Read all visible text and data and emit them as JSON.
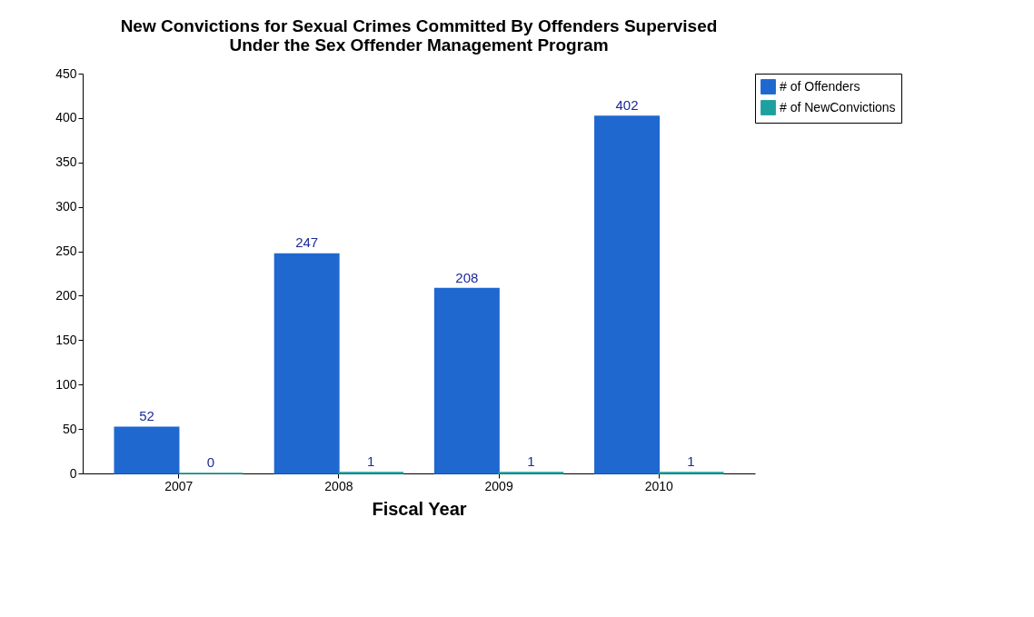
{
  "chart_data": {
    "type": "bar",
    "title": "New Convictions for Sexual Crimes Committed By Offenders Supervised\nUnder the Sex Offender Management Program",
    "xlabel": "Fiscal Year",
    "categories": [
      "2007",
      "2008",
      "2009",
      "2010"
    ],
    "series": [
      {
        "name": "# of Offenders",
        "color": "#1f68d0",
        "values": [
          52,
          247,
          208,
          402
        ]
      },
      {
        "name": "# of NewConvictions",
        "color": "#1fa0a0",
        "values": [
          0,
          1,
          1,
          1
        ]
      }
    ],
    "ylim": [
      0,
      450
    ],
    "yticks": [
      0,
      50,
      100,
      150,
      200,
      250,
      300,
      350,
      400,
      450
    ],
    "grid": false,
    "legend": "top right",
    "data_labels": true
  }
}
